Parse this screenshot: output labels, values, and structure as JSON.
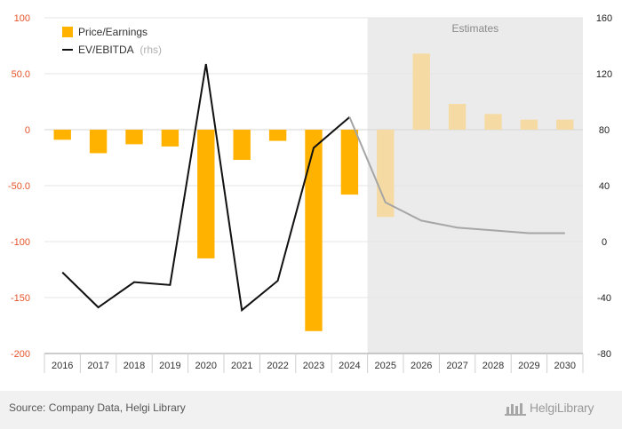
{
  "chart_data": {
    "type": "bar+line",
    "categories": [
      "2016",
      "2017",
      "2018",
      "2019",
      "2020",
      "2021",
      "2022",
      "2023",
      "2024",
      "2025",
      "2026",
      "2027",
      "2028",
      "2029",
      "2030"
    ],
    "series": [
      {
        "name": "Price/Earnings",
        "type": "bar",
        "axis": "left",
        "color": "#FFB300",
        "estimate_color": "#F5DBA3",
        "values": [
          -9,
          -21,
          -13,
          -15,
          -115,
          -27,
          -10,
          -180,
          -58,
          -78,
          68,
          23,
          14,
          9,
          9
        ]
      },
      {
        "name": "EV/EBITDA",
        "name_suffix": "(rhs)",
        "type": "line",
        "axis": "right",
        "color": "#111111",
        "estimate_color": "#a6a6a6",
        "values": [
          -22,
          -47,
          -29,
          -31,
          127,
          -49,
          -28,
          67,
          89,
          28,
          15,
          10,
          8,
          6,
          6
        ]
      }
    ],
    "estimates_from_index": 9,
    "estimates_label": "Estimates",
    "yaxis_left": {
      "min": -200,
      "max": 100,
      "ticks": [
        100,
        50,
        0,
        -50,
        -100,
        -150,
        -200
      ],
      "tick_labels": [
        "100",
        "50.0",
        "0",
        "-50.0",
        "-100",
        "-150",
        "-200"
      ]
    },
    "yaxis_right": {
      "min": -80,
      "max": 160,
      "ticks": [
        160,
        120,
        80,
        40,
        0,
        -40,
        -80
      ],
      "tick_labels": [
        "160",
        "120",
        "80",
        "40",
        "0",
        "-40",
        "-80"
      ]
    },
    "legend_position": "top-left"
  },
  "footer": {
    "source": "Source: Company Data, Helgi Library",
    "logo_text": "HelgiLibrary"
  }
}
